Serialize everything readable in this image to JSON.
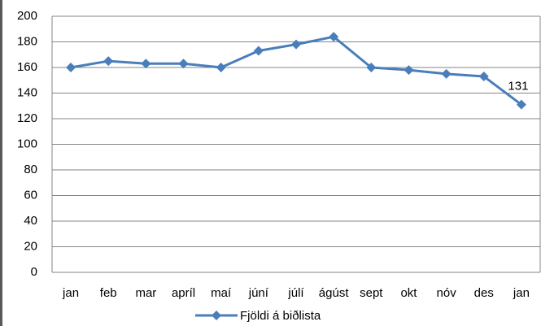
{
  "chart_data": {
    "type": "line",
    "categories": [
      "jan",
      "feb",
      "mar",
      "apríl",
      "maí",
      "júní",
      "júlí",
      "ágúst",
      "sept",
      "okt",
      "nóv",
      "des",
      "jan"
    ],
    "series": [
      {
        "name": "Fjöldi á biðlista",
        "color": "#4a7ebb",
        "values": [
          160,
          165,
          163,
          163,
          160,
          173,
          178,
          184,
          160,
          158,
          155,
          153,
          131
        ]
      }
    ],
    "ylim": [
      0,
      200
    ],
    "yticks": [
      0,
      20,
      40,
      60,
      80,
      100,
      120,
      140,
      160,
      180,
      200
    ],
    "grid": true,
    "legend": "bottom"
  }
}
